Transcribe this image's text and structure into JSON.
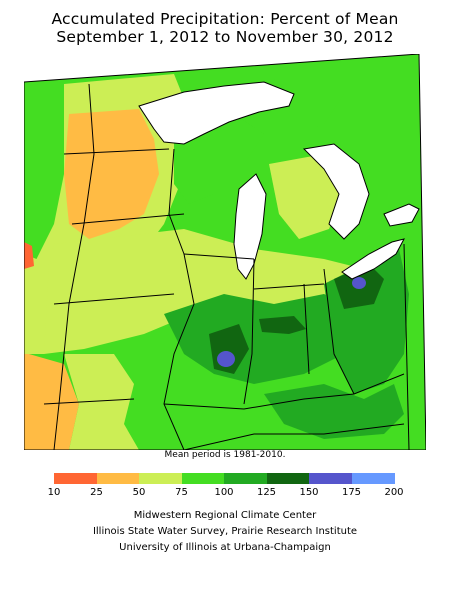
{
  "title": {
    "line1": "Accumulated Precipitation: Percent of Mean",
    "line2": "September 1, 2012 to November 30, 2012"
  },
  "map": {
    "note": "Mean period is 1981-2010.",
    "colors": {
      "water": "#ffffff",
      "lt25": "#ffbb44",
      "lt50": "#ffbb44",
      "lt75": "#ccee55",
      "lt100": "#44dd22",
      "lt125": "#22aa22",
      "lt150": "#116611",
      "lt175": "#5555cc",
      "tomato": "#ff6633"
    }
  },
  "legend": {
    "bins": [
      {
        "color": "#ff6633"
      },
      {
        "color": "#ffbb44"
      },
      {
        "color": "#ccee55"
      },
      {
        "color": "#44dd22"
      },
      {
        "color": "#22aa22"
      },
      {
        "color": "#116611"
      },
      {
        "color": "#5555cc"
      },
      {
        "color": "#6699ff"
      }
    ],
    "labels": [
      "10",
      "25",
      "50",
      "75",
      "100",
      "125",
      "150",
      "175",
      "200"
    ]
  },
  "credits": {
    "line1": "Midwestern Regional Climate Center",
    "line2": "Illinois State Water Survey, Prairie Research Institute",
    "line3": "University of Illinois at Urbana-Champaign"
  }
}
